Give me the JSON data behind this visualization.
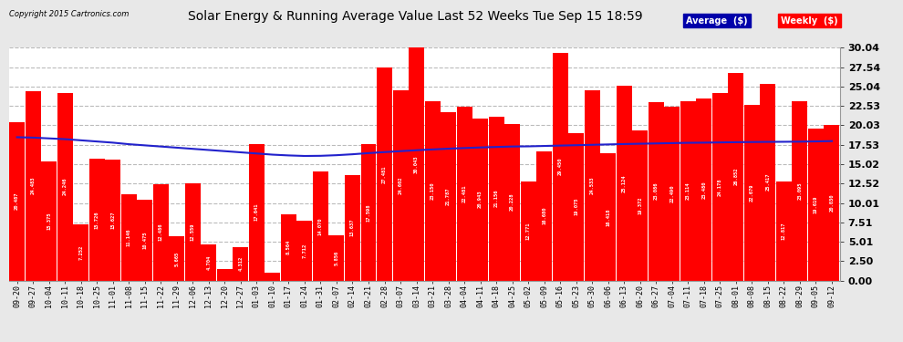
{
  "title": "Solar Energy & Running Average Value Last 52 Weeks Tue Sep 15 18:59",
  "copyright": "Copyright 2015 Cartronics.com",
  "bar_color": "#FF0000",
  "avg_line_color": "#2222CC",
  "background_color": "#E8E8E8",
  "plot_bg_color": "#FFFFFF",
  "grid_color": "#BBBBBB",
  "ylim": [
    0,
    30.04
  ],
  "yticks": [
    0.0,
    2.5,
    5.01,
    7.51,
    10.01,
    12.52,
    15.02,
    17.53,
    20.03,
    22.53,
    25.04,
    27.54,
    30.04
  ],
  "legend_avg_color": "#0000FF",
  "legend_weekly_color": "#FF0000",
  "categories": [
    "09-20",
    "09-27",
    "10-04",
    "10-11",
    "10-18",
    "10-25",
    "11-01",
    "11-08",
    "11-15",
    "11-22",
    "11-29",
    "12-06",
    "12-13",
    "12-20",
    "12-27",
    "01-03",
    "01-10",
    "01-17",
    "01-24",
    "01-31",
    "02-07",
    "02-14",
    "02-21",
    "02-28",
    "03-07",
    "03-14",
    "03-21",
    "03-28",
    "04-04",
    "04-11",
    "04-18",
    "04-25",
    "05-02",
    "05-09",
    "05-16",
    "05-23",
    "05-30",
    "06-06",
    "06-13",
    "06-20",
    "06-27",
    "07-04",
    "07-11",
    "07-18",
    "07-25",
    "08-01",
    "08-08",
    "08-15",
    "08-22",
    "08-29",
    "09-05",
    "09-12"
  ],
  "weekly_values": [
    20.487,
    24.483,
    15.375,
    24.246,
    7.252,
    15.726,
    15.627,
    11.146,
    10.475,
    12.486,
    5.665,
    12.559,
    4.704,
    1.529,
    4.312,
    17.641,
    1.006,
    8.564,
    7.712,
    14.07,
    5.856,
    13.637,
    17.598,
    27.481,
    24.602,
    30.043,
    23.15,
    21.787,
    22.481,
    20.943,
    21.156,
    20.228,
    12.771,
    16.68,
    29.45,
    19.075,
    24.533,
    16.418,
    25.124,
    19.372,
    23.086,
    22.49,
    23.114,
    23.48,
    24.178,
    26.852,
    22.679,
    25.417,
    12.817,
    23.095,
    19.619,
    20.03
  ],
  "avg_values": [
    18.5,
    18.45,
    18.35,
    18.25,
    18.1,
    17.95,
    17.8,
    17.6,
    17.45,
    17.3,
    17.15,
    17.0,
    16.85,
    16.7,
    16.55,
    16.4,
    16.25,
    16.15,
    16.08,
    16.1,
    16.18,
    16.3,
    16.45,
    16.58,
    16.7,
    16.82,
    16.92,
    17.02,
    17.1,
    17.18,
    17.24,
    17.3,
    17.32,
    17.37,
    17.42,
    17.47,
    17.52,
    17.57,
    17.62,
    17.66,
    17.7,
    17.74,
    17.78,
    17.8,
    17.83,
    17.86,
    17.88,
    17.9,
    17.91,
    17.93,
    17.96,
    18.0
  ]
}
